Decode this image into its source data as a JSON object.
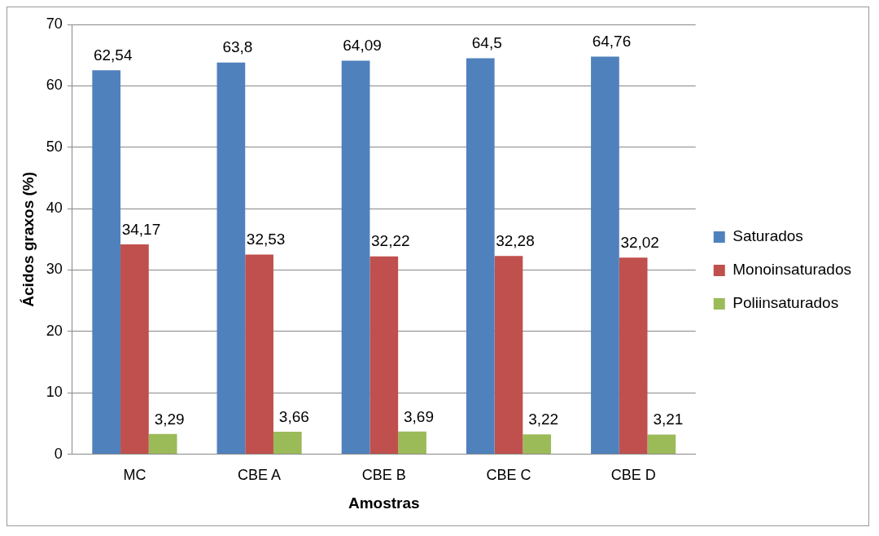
{
  "chart_data": {
    "type": "bar",
    "xlabel": "Amostras",
    "ylabel": "Ácidos graxos (%)",
    "categories": [
      "MC",
      "CBE A",
      "CBE B",
      "CBE C",
      "CBE D"
    ],
    "series": [
      {
        "name": "Saturados",
        "color": "#4f81bd",
        "values": [
          62.54,
          63.8,
          64.09,
          64.5,
          64.76
        ],
        "value_labels": [
          "62,54",
          "63,8",
          "64,09",
          "64,5",
          "64,76"
        ]
      },
      {
        "name": "Monoinsaturados",
        "color": "#c0504d",
        "values": [
          34.17,
          32.53,
          32.22,
          32.28,
          32.02
        ],
        "value_labels": [
          "34,17",
          "32,53",
          "32,22",
          "32,28",
          "32,02"
        ]
      },
      {
        "name": "Poliinsaturados",
        "color": "#9bbb59",
        "values": [
          3.29,
          3.66,
          3.69,
          3.22,
          3.21
        ],
        "value_labels": [
          "3,29",
          "3,66",
          "3,69",
          "3,22",
          "3,21"
        ]
      }
    ],
    "ylim": [
      0,
      70
    ],
    "yticks": [
      0,
      10,
      20,
      30,
      40,
      50,
      60,
      70
    ],
    "grid": "y",
    "legend": "right"
  }
}
